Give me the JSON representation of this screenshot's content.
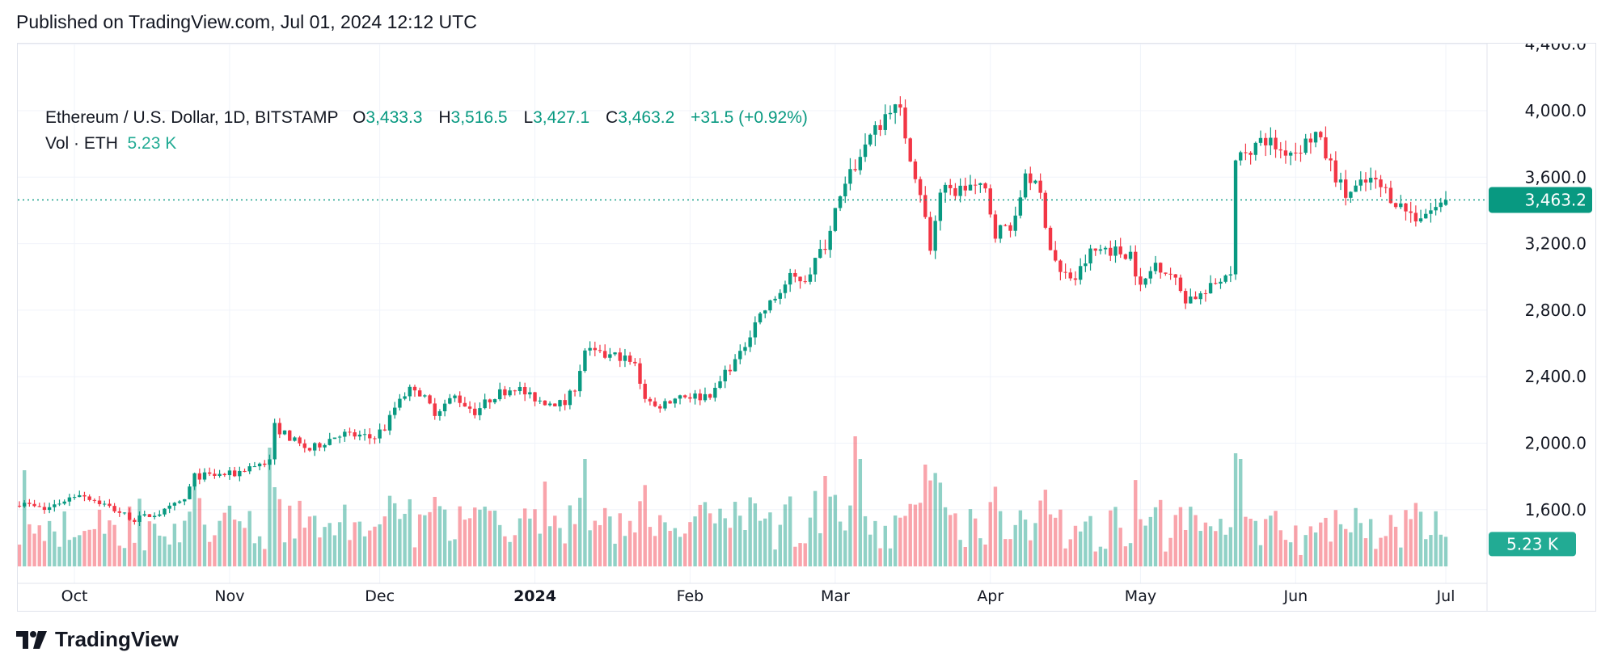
{
  "header": {
    "published": "Published on TradingView.com, Jul 01, 2024 12:12 UTC"
  },
  "legend": {
    "symbol": "Ethereum / U.S. Dollar, 1D, BITSTAMP",
    "o_label": "O",
    "o": "3,433.3",
    "h_label": "H",
    "h": "3,516.5",
    "l_label": "L",
    "l": "3,427.1",
    "c_label": "C",
    "c": "3,463.2",
    "change": "+31.5 (+0.92%)",
    "vol_label": "Vol · ETH",
    "vol": "5.23 K"
  },
  "price_badge": "3,463.2",
  "volume_badge": "5.23 K",
  "footer": {
    "brand": "TradingView"
  },
  "colors": {
    "up": "#089981",
    "down": "#F23645",
    "volume_badge": "#22ab94",
    "grid": "#f0f3fa"
  },
  "chart_data": {
    "type": "candlestick",
    "interval": "1D",
    "y_ticks": [
      "4,400.0",
      "4,000.0",
      "3,600.0",
      "3,200.0",
      "2,800.0",
      "2,400.0",
      "2,000.0",
      "1,600.0"
    ],
    "y_tick_values": [
      4400,
      4000,
      3600,
      3200,
      2800,
      2400,
      2000,
      1600
    ],
    "x_ticks": [
      {
        "label": "Oct",
        "date": "2023-10-01"
      },
      {
        "label": "Nov",
        "date": "2023-11-01"
      },
      {
        "label": "Dec",
        "date": "2023-12-01"
      },
      {
        "label": "2024",
        "date": "2024-01-01",
        "bold": true
      },
      {
        "label": "Feb",
        "date": "2024-02-01"
      },
      {
        "label": "Mar",
        "date": "2024-03-01"
      },
      {
        "label": "Apr",
        "date": "2024-04-01"
      },
      {
        "label": "May",
        "date": "2024-05-01"
      },
      {
        "label": "Jun",
        "date": "2024-06-01"
      },
      {
        "label": "Jul",
        "date": "2024-07-01"
      }
    ],
    "start_date": "2023-09-20",
    "end_date": "2024-07-01",
    "last_candle": {
      "o": 3433.3,
      "h": 3516.5,
      "l": 3427.1,
      "c": 3463.2,
      "volume_k": 5.23
    },
    "close_keypoints": [
      [
        "2023-09-20",
        1640
      ],
      [
        "2023-09-25",
        1600
      ],
      [
        "2023-10-02",
        1700
      ],
      [
        "2023-10-07",
        1630
      ],
      [
        "2023-10-13",
        1540
      ],
      [
        "2023-10-19",
        1590
      ],
      [
        "2023-10-23",
        1660
      ],
      [
        "2023-10-25",
        1800
      ],
      [
        "2023-11-02",
        1815
      ],
      [
        "2023-11-05",
        1860
      ],
      [
        "2023-11-09",
        1890
      ],
      [
        "2023-11-10",
        2100
      ],
      [
        "2023-11-15",
        1990
      ],
      [
        "2023-11-17",
        1960
      ],
      [
        "2023-11-23",
        2060
      ],
      [
        "2023-11-29",
        2030
      ],
      [
        "2023-12-02",
        2090
      ],
      [
        "2023-12-05",
        2280
      ],
      [
        "2023-12-08",
        2340
      ],
      [
        "2023-12-12",
        2190
      ],
      [
        "2023-12-16",
        2280
      ],
      [
        "2023-12-20",
        2190
      ],
      [
        "2023-12-24",
        2290
      ],
      [
        "2023-12-28",
        2340
      ],
      [
        "2023-12-31",
        2280
      ],
      [
        "2024-01-03",
        2250
      ],
      [
        "2024-01-07",
        2235
      ],
      [
        "2024-01-09",
        2340
      ],
      [
        "2024-01-11",
        2560
      ],
      [
        "2024-01-14",
        2525
      ],
      [
        "2024-01-18",
        2525
      ],
      [
        "2024-01-21",
        2465
      ],
      [
        "2024-01-23",
        2280
      ],
      [
        "2024-01-25",
        2215
      ],
      [
        "2024-01-30",
        2290
      ],
      [
        "2024-02-03",
        2280
      ],
      [
        "2024-02-06",
        2310
      ],
      [
        "2024-02-08",
        2430
      ],
      [
        "2024-02-11",
        2525
      ],
      [
        "2024-02-14",
        2740
      ],
      [
        "2024-02-17",
        2835
      ],
      [
        "2024-02-21",
        2990
      ],
      [
        "2024-02-24",
        2990
      ],
      [
        "2024-02-28",
        3200
      ],
      [
        "2024-03-01",
        3390
      ],
      [
        "2024-03-04",
        3610
      ],
      [
        "2024-03-07",
        3800
      ],
      [
        "2024-03-10",
        3920
      ],
      [
        "2024-03-12",
        4030
      ],
      [
        "2024-03-14",
        3980
      ],
      [
        "2024-03-16",
        3730
      ],
      [
        "2024-03-18",
        3515
      ],
      [
        "2024-03-20",
        3175
      ],
      [
        "2024-03-22",
        3515
      ],
      [
        "2024-03-25",
        3515
      ],
      [
        "2024-03-28",
        3550
      ],
      [
        "2024-03-31",
        3515
      ],
      [
        "2024-04-02",
        3270
      ],
      [
        "2024-04-06",
        3330
      ],
      [
        "2024-04-08",
        3640
      ],
      [
        "2024-04-11",
        3490
      ],
      [
        "2024-04-13",
        3175
      ],
      [
        "2024-04-15",
        3020
      ],
      [
        "2024-04-18",
        2990
      ],
      [
        "2024-04-21",
        3145
      ],
      [
        "2024-04-24",
        3175
      ],
      [
        "2024-04-27",
        3145
      ],
      [
        "2024-04-29",
        3145
      ],
      [
        "2024-05-01",
        2930
      ],
      [
        "2024-05-04",
        3085
      ],
      [
        "2024-05-07",
        3020
      ],
      [
        "2024-05-10",
        2870
      ],
      [
        "2024-05-14",
        2900
      ],
      [
        "2024-05-17",
        2990
      ],
      [
        "2024-05-19",
        3050
      ],
      [
        "2024-05-20",
        3670
      ],
      [
        "2024-05-22",
        3760
      ],
      [
        "2024-05-26",
        3830
      ],
      [
        "2024-05-29",
        3760
      ],
      [
        "2024-06-01",
        3760
      ],
      [
        "2024-06-05",
        3860
      ],
      [
        "2024-06-08",
        3670
      ],
      [
        "2024-06-11",
        3490
      ],
      [
        "2024-06-14",
        3550
      ],
      [
        "2024-06-16",
        3580
      ],
      [
        "2024-06-19",
        3515
      ],
      [
        "2024-06-22",
        3425
      ],
      [
        "2024-06-25",
        3360
      ],
      [
        "2024-06-28",
        3400
      ],
      [
        "2024-06-30",
        3433.3
      ]
    ],
    "volume_spikes_k": [
      [
        "2023-09-21",
        17
      ],
      [
        "2023-11-09",
        21
      ],
      [
        "2023-11-10",
        14
      ],
      [
        "2024-01-03",
        15
      ],
      [
        "2024-01-11",
        19
      ],
      [
        "2024-02-28",
        16
      ],
      [
        "2024-03-05",
        23
      ],
      [
        "2024-03-06",
        19
      ],
      [
        "2024-03-19",
        18
      ],
      [
        "2024-05-20",
        20
      ],
      [
        "2024-05-21",
        19
      ]
    ]
  }
}
